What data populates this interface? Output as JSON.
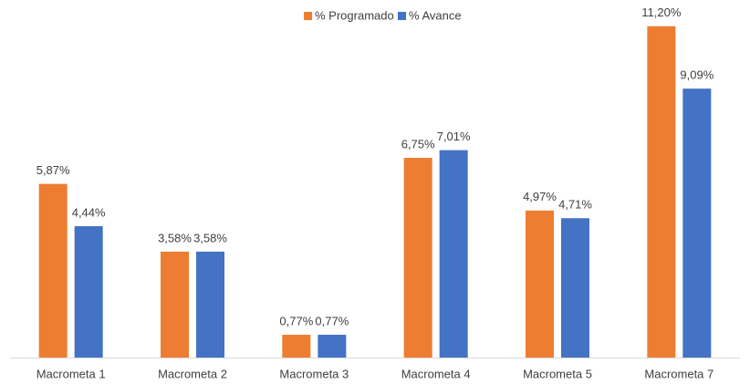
{
  "chart_data": {
    "type": "bar",
    "categories": [
      "Macrometa 1",
      "Macrometa 2",
      "Macrometa 3",
      "Macrometa 4",
      "Macrometa 5",
      "Macrometa 7"
    ],
    "series": [
      {
        "name": "% Programado",
        "color": "#ed7d31",
        "values": [
          5.87,
          3.58,
          0.77,
          6.75,
          4.97,
          11.2
        ],
        "value_labels": [
          "5,87%",
          "3,58%",
          "0,77%",
          "6,75%",
          "4,97%",
          "11,20%"
        ]
      },
      {
        "name": "% Avance",
        "color": "#4472c4",
        "values": [
          4.44,
          3.58,
          0.77,
          7.01,
          4.71,
          9.09
        ],
        "value_labels": [
          "4,44%",
          "3,58%",
          "0,77%",
          "7,01%",
          "4,71%",
          "9,09%"
        ]
      }
    ],
    "ylim": [
      0,
      11.5
    ],
    "legend": "top"
  }
}
